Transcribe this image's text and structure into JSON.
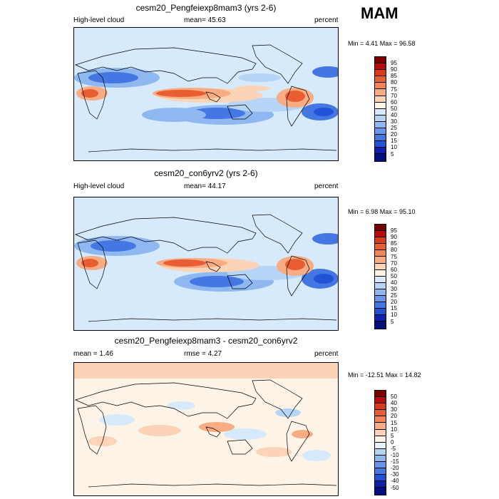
{
  "season": "MAM",
  "panels": [
    {
      "title": "cesm20_Pengfeiexp8mam3 (yrs 2-6)",
      "left_label": "High-level cloud",
      "center_label": "mean=  45.63",
      "right_label": "percent",
      "minmax": "Min =   4.41 Max =  96.58",
      "colorbar": {
        "labels": [
          "95",
          "90",
          "85",
          "80",
          "75",
          "70",
          "60",
          "50",
          "40",
          "30",
          "25",
          "20",
          "15",
          "10",
          "5"
        ],
        "colors": [
          "#7a0000",
          "#b80c0c",
          "#d93a19",
          "#e85e32",
          "#f28558",
          "#f8ac84",
          "#fbd3b6",
          "#fdf3e6",
          "#d6eafb",
          "#b5d4f6",
          "#8fb8f0",
          "#6a96ea",
          "#4577e2",
          "#2253d6",
          "#0f1fb0",
          "#030f7a"
        ]
      }
    },
    {
      "title": "cesm20_con6yrv2 (yrs 2-6)",
      "left_label": "High-level cloud",
      "center_label": "mean=  44.17",
      "right_label": "percent",
      "minmax": "Min =   6.98 Max =  95.10",
      "colorbar": {
        "labels": [
          "95",
          "90",
          "85",
          "80",
          "75",
          "70",
          "60",
          "50",
          "40",
          "30",
          "25",
          "20",
          "15",
          "10",
          "5"
        ],
        "colors": [
          "#7a0000",
          "#b80c0c",
          "#d93a19",
          "#e85e32",
          "#f28558",
          "#f8ac84",
          "#fbd3b6",
          "#fdf3e6",
          "#d6eafb",
          "#b5d4f6",
          "#8fb8f0",
          "#6a96ea",
          "#4577e2",
          "#2253d6",
          "#0f1fb0",
          "#030f7a"
        ]
      }
    },
    {
      "title": "cesm20_Pengfeiexp8mam3 - cesm20_con6yrv2",
      "left_label": "mean =   1.46",
      "center_label": "rmse =   4.27",
      "right_label": "percent",
      "minmax": "Min = -12.51 Max =  14.82",
      "colorbar": {
        "labels": [
          "50",
          "40",
          "30",
          "20",
          "15",
          "10",
          "5",
          "0",
          "-5",
          "-10",
          "-15",
          "-20",
          "-30",
          "-40",
          "-50"
        ],
        "colors": [
          "#7a0000",
          "#b80c0c",
          "#d93a19",
          "#e85e32",
          "#f28558",
          "#f8ac84",
          "#fbd3b6",
          "#fdf3e6",
          "#e6f1fb",
          "#b5d4f6",
          "#8fb8f0",
          "#6a96ea",
          "#4577e2",
          "#2253d6",
          "#0f1fb0",
          "#030f7a"
        ]
      }
    }
  ]
}
